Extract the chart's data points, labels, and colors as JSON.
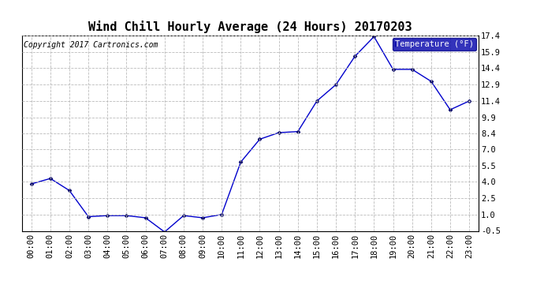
{
  "title": "Wind Chill Hourly Average (24 Hours) 20170203",
  "copyright": "Copyright 2017 Cartronics.com",
  "legend_label": "Temperature (°F)",
  "x_labels": [
    "00:00",
    "01:00",
    "02:00",
    "03:00",
    "04:00",
    "05:00",
    "06:00",
    "07:00",
    "08:00",
    "09:00",
    "10:00",
    "11:00",
    "12:00",
    "13:00",
    "14:00",
    "15:00",
    "16:00",
    "17:00",
    "18:00",
    "19:00",
    "20:00",
    "21:00",
    "22:00",
    "23:00"
  ],
  "y_values": [
    3.8,
    4.3,
    3.2,
    0.8,
    0.9,
    0.9,
    0.7,
    -0.6,
    0.9,
    0.7,
    1.0,
    5.8,
    7.9,
    8.5,
    8.6,
    11.4,
    12.9,
    15.5,
    17.3,
    14.3,
    14.3,
    13.2,
    10.6,
    11.4
  ],
  "ylim": [
    -0.5,
    17.4
  ],
  "yticks": [
    -0.5,
    1.0,
    2.5,
    4.0,
    5.5,
    7.0,
    8.4,
    9.9,
    11.4,
    12.9,
    14.4,
    15.9,
    17.4
  ],
  "line_color": "#0000cc",
  "marker_color": "#000066",
  "background_color": "#ffffff",
  "grid_color": "#bbbbbb",
  "title_fontsize": 11,
  "axis_fontsize": 7.5,
  "copyright_fontsize": 7,
  "legend_bg": "#0000aa",
  "legend_text_color": "#ffffff"
}
